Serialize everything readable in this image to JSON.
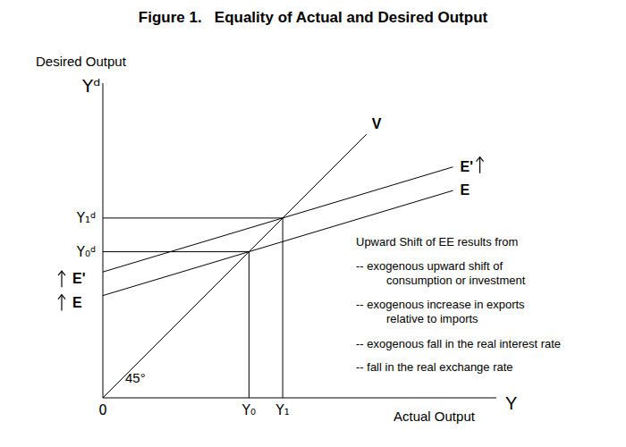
{
  "chart_data": {
    "type": "line",
    "title": "Figure 1.   Equality of Actual and Desired Output",
    "y_label": "Desired Output",
    "y_symbol": "Yᵈ",
    "x_label": "Actual Output",
    "x_symbol": "Y",
    "x": [
      0,
      67,
      89
    ],
    "series": [
      {
        "name": "V",
        "color": "#000000",
        "line_style": "solid",
        "values": [
          0,
          67,
          null
        ]
      },
      {
        "name": "E",
        "color": "#000000",
        "line_style": "solid",
        "values": [
          26,
          46.1,
          52.7
        ]
      },
      {
        "name": "E'",
        "color": "#000000",
        "line_style": "solid",
        "values": [
          32,
          52.1,
          58.7
        ]
      }
    ],
    "xlim": [
      0,
      100
    ],
    "ylim": [
      0,
      80
    ],
    "xticks": [
      0,
      {
        "value": 37.14,
        "label": "Y₀"
      },
      {
        "value": 45.71,
        "label": "Y₁"
      }
    ],
    "yticks": [
      {
        "value": 37.14,
        "label": "Y₀ᵈ"
      },
      {
        "value": 45.71,
        "label": "Y₁ᵈ"
      }
    ],
    "grid": false,
    "annotations": {
      "angle": "45°",
      "heading": "Upward Shift of EE results from",
      "items": [
        [
          "-- exogenous upward shift of",
          "consumption or investment"
        ],
        [
          "-- exogenous increase in exports",
          "relative to imports"
        ],
        [
          "-- exogenous fall in the real interest rate"
        ],
        [
          "-- fall in the real exchange rate"
        ]
      ]
    }
  }
}
